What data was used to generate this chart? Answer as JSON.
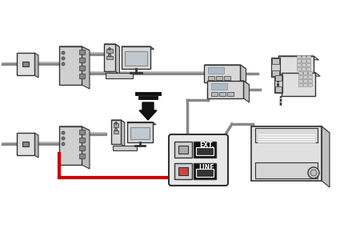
{
  "bg_color": "#ffffff",
  "lc": "#333333",
  "gray": "#888888",
  "lgray": "#cccccc",
  "dgray": "#555555",
  "red": "#cc0000",
  "black": "#111111",
  "white": "#ffffff",
  "shadow": "#aaaaaa",
  "fig_w": 4.25,
  "fig_h": 3.0,
  "dpi": 100
}
